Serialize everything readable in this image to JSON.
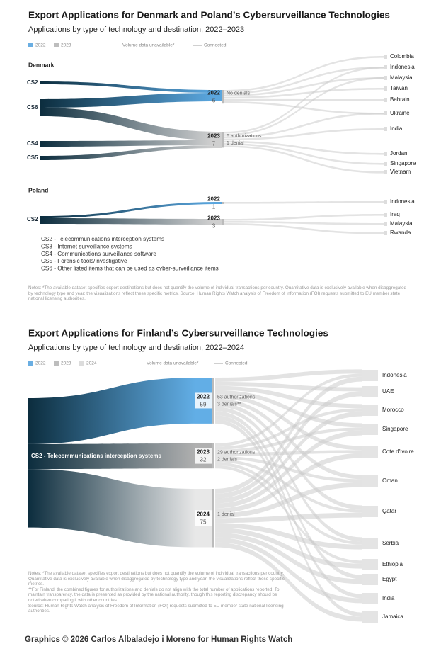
{
  "denmark_poland": {
    "title": "Export Applications for Denmark and Poland’s Cybersurveillance Technologies",
    "subtitle": "Applications by type of technology and destination, 2022–2023",
    "legend": [
      {
        "label": "2022",
        "style": "swatch",
        "color": "#6aaee2"
      },
      {
        "label": "2023",
        "style": "swatch",
        "color": "#bdbdbd"
      },
      {
        "label": "Volume data unavailable*",
        "style": "dashed",
        "color": "#d0d0d0"
      },
      {
        "label": "Connected",
        "style": "line",
        "color": "#d0d0d0"
      }
    ],
    "denmark": {
      "label": "Denmark",
      "sources": [
        "CS2",
        "CS6",
        "CS4",
        "CS5"
      ],
      "years": [
        {
          "year": "2022",
          "count": 6,
          "notes": [
            "No denials"
          ]
        },
        {
          "year": "2023",
          "count": 7,
          "notes": [
            "6 authorizations",
            "1 denial"
          ]
        }
      ],
      "destinations": [
        "Colombia",
        "Indonesia",
        "Malaysia",
        "Taiwan",
        "Bahrain",
        "Ukraine",
        "India",
        "Jordan",
        "Singapore",
        "Vietnam"
      ]
    },
    "poland": {
      "label": "Poland",
      "sources": [
        "CS2"
      ],
      "years": [
        {
          "year": "2022",
          "count": 1
        },
        {
          "year": "2023",
          "count": 3
        }
      ],
      "destinations": [
        "Indonesia",
        "Iraq",
        "Malaysia",
        "Rwanda"
      ]
    },
    "key": [
      "CS2 - Telecommunications interception systems",
      "CS3 - Internet surveillance systems",
      "CS4 - Communications surveillance software",
      "CS5 - Forensic tools/investigative",
      "CS6 - Other listed items that can be used as cyber-surveillance items"
    ],
    "notes": [
      "Notes: *The available dataset specifies export destinations but does not quantify the volume of individual transactions per country. Quantitative data is exclusively available when disaggregated by technology type and year; the visualizations reflect these specific metrics. Source: Human Rights Watch analysis of Freedom of Information (FOI) requests submitted to EU member state national licensing authorities."
    ]
  },
  "finland": {
    "title": "Export Applications for Finland’s Cybersurveillance Technologies",
    "subtitle": "Applications by type of technology and destination, 2022–2024",
    "legend": [
      {
        "label": "2022",
        "style": "swatch",
        "color": "#6aaee2"
      },
      {
        "label": "2023",
        "style": "swatch",
        "color": "#bdbdbd"
      },
      {
        "label": "2024",
        "style": "swatch",
        "color": "#dcdcdc"
      },
      {
        "label": "Volume data unavailable*",
        "style": "dashed",
        "color": "#d0d0d0"
      },
      {
        "label": "Connected",
        "style": "line",
        "color": "#d0d0d0"
      }
    ],
    "source": "CS2 - Telecommunications interception systems",
    "years": [
      {
        "year": "2022",
        "count": 59,
        "notes": [
          "53 authorizations",
          "3 denials**"
        ]
      },
      {
        "year": "2023",
        "count": 32,
        "notes": [
          "29 authorizations",
          "2 denials"
        ]
      },
      {
        "year": "2024",
        "count": 75,
        "notes": [
          "1 denial"
        ]
      }
    ],
    "destinations": [
      "Indonesia",
      "UAE",
      "Morocco",
      "Singapore",
      "Cote d'Ivoire",
      "Oman",
      "Qatar",
      "Serbia",
      "Ethiopia",
      "Egypt",
      "India",
      "Jamaica"
    ],
    "notes": [
      "Notes: *The available dataset specifies export destinations but does not quantify the volume of individual transactions per country. Quantitative data is exclusively available when disaggregated by technology type and year; the visualizations reflect these specific metrics.",
      "**For Finland, the combined figures for authorizations and denials do not align with the total number of applications reported. To maintain transparency, the data is presented as provided by the national authority, though this reporting discrepancy should be noted when comparing it with other countries.",
      "Source: Human Rights Watch analysis of Freedom of Information (FOI) requests submitted to EU member state national licensing authorities."
    ]
  },
  "credit": "Graphics © 2026 Carlos Albaladejo i Moreno for Human Rights Watch"
}
